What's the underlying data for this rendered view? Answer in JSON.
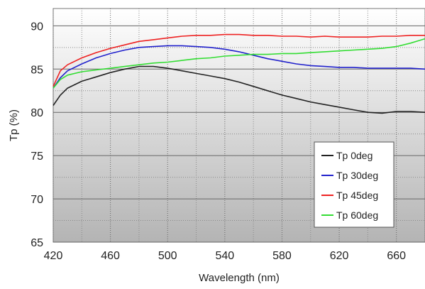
{
  "chart_data": {
    "type": "line",
    "title": "",
    "xlabel": "Wavelength (nm)",
    "ylabel": "Tp (%)",
    "xlim": [
      420,
      680
    ],
    "ylim": [
      65,
      92
    ],
    "x_ticks": [
      420,
      460,
      500,
      540,
      580,
      620,
      660
    ],
    "y_ticks": [
      65,
      70,
      75,
      80,
      85,
      90
    ],
    "grid": "dotted",
    "legend_position": "bottom-right",
    "background": "vertical gradient white to gray",
    "series": [
      {
        "name": "Tp 0deg",
        "color": "#222222",
        "x": [
          420,
          425,
          430,
          440,
          450,
          460,
          470,
          480,
          490,
          500,
          510,
          520,
          530,
          540,
          550,
          560,
          570,
          580,
          590,
          600,
          610,
          620,
          630,
          640,
          650,
          660,
          670,
          680
        ],
        "y": [
          80.8,
          82.0,
          82.8,
          83.6,
          84.1,
          84.6,
          85.0,
          85.3,
          85.3,
          85.1,
          84.8,
          84.5,
          84.2,
          83.9,
          83.5,
          83.0,
          82.5,
          82.0,
          81.6,
          81.2,
          80.9,
          80.6,
          80.3,
          80.0,
          79.9,
          80.1,
          80.1,
          80.0
        ]
      },
      {
        "name": "Tp 30deg",
        "color": "#2222cc",
        "x": [
          420,
          425,
          430,
          440,
          450,
          460,
          470,
          480,
          490,
          500,
          510,
          520,
          530,
          540,
          550,
          560,
          570,
          580,
          590,
          600,
          610,
          620,
          630,
          640,
          650,
          660,
          670,
          680
        ],
        "y": [
          82.8,
          84.0,
          84.8,
          85.6,
          86.3,
          86.8,
          87.2,
          87.5,
          87.6,
          87.7,
          87.7,
          87.6,
          87.5,
          87.3,
          87.0,
          86.6,
          86.2,
          85.9,
          85.6,
          85.4,
          85.3,
          85.2,
          85.2,
          85.1,
          85.1,
          85.1,
          85.1,
          85.0
        ]
      },
      {
        "name": "Tp 45deg",
        "color": "#ee2222",
        "x": [
          420,
          425,
          430,
          440,
          450,
          460,
          470,
          480,
          490,
          500,
          510,
          520,
          530,
          540,
          550,
          560,
          570,
          580,
          590,
          600,
          610,
          620,
          630,
          640,
          650,
          660,
          670,
          680
        ],
        "y": [
          83.0,
          84.8,
          85.5,
          86.3,
          86.9,
          87.4,
          87.8,
          88.2,
          88.4,
          88.6,
          88.8,
          88.9,
          88.9,
          89.0,
          89.0,
          88.9,
          88.9,
          88.8,
          88.8,
          88.7,
          88.8,
          88.7,
          88.7,
          88.7,
          88.8,
          88.8,
          88.9,
          88.9
        ]
      },
      {
        "name": "Tp 60deg",
        "color": "#33dd33",
        "x": [
          420,
          425,
          430,
          440,
          450,
          460,
          470,
          480,
          490,
          500,
          510,
          520,
          530,
          540,
          550,
          560,
          570,
          580,
          590,
          600,
          610,
          620,
          630,
          640,
          650,
          660,
          670,
          680
        ],
        "y": [
          82.8,
          83.8,
          84.3,
          84.7,
          84.9,
          85.1,
          85.3,
          85.5,
          85.7,
          85.8,
          86.0,
          86.2,
          86.3,
          86.5,
          86.6,
          86.7,
          86.7,
          86.8,
          86.8,
          86.9,
          87.0,
          87.1,
          87.2,
          87.3,
          87.4,
          87.6,
          88.0,
          88.5
        ]
      }
    ]
  }
}
